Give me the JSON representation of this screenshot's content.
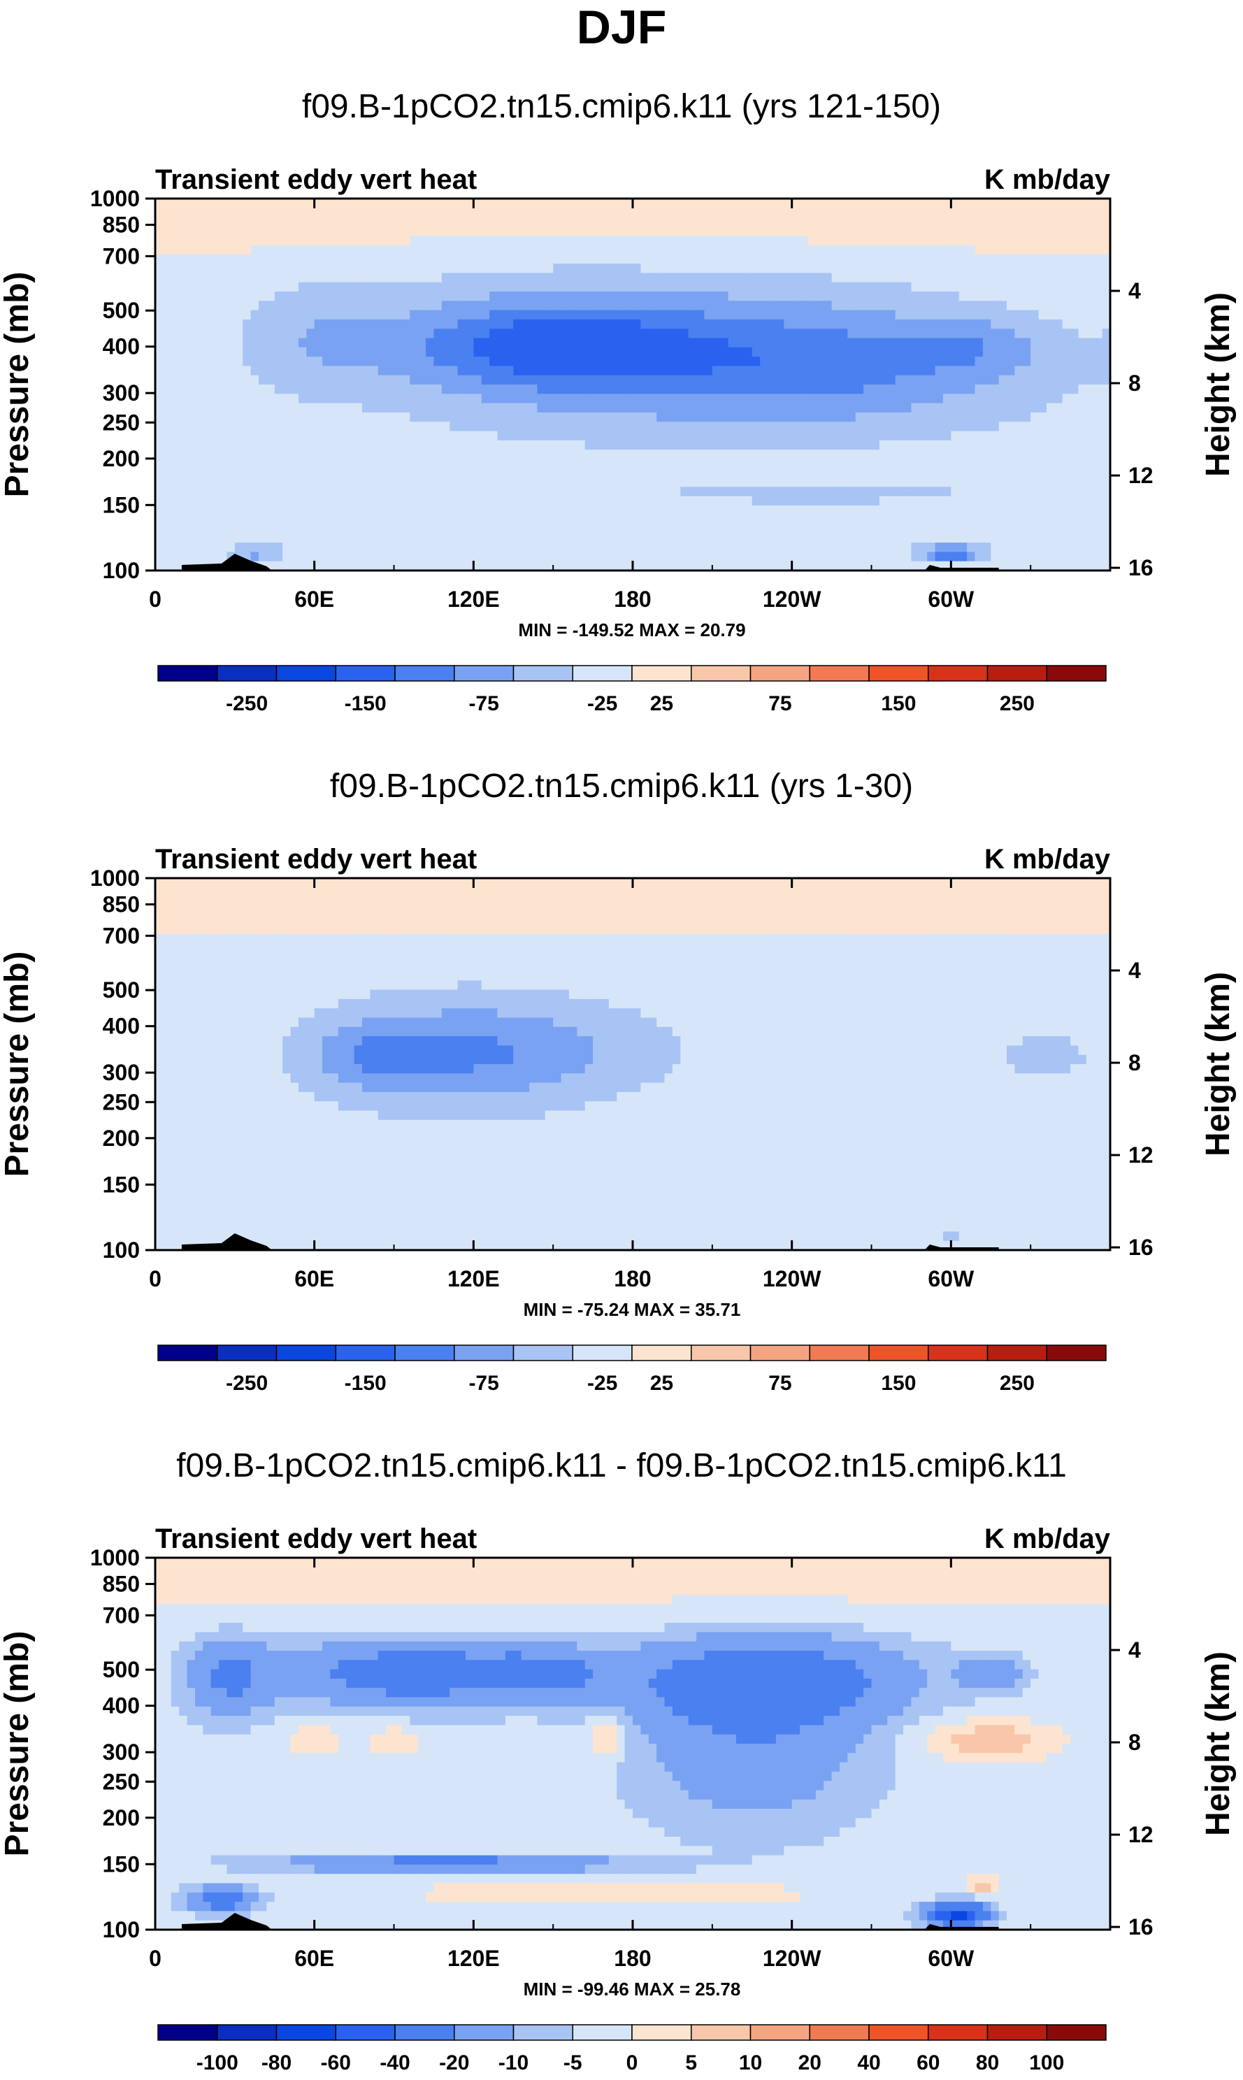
{
  "figure_title": "DJF",
  "chart_data": [
    {
      "type": "heatmap",
      "title": "f09.B-1pCO2.tn15.cmip6.k11 (yrs 121-150)",
      "subtitle_left": "Transient eddy vert heat",
      "subtitle_right": "K mb/day",
      "ylabel_left": "Pressure (mb)",
      "ylabel_right": "Height (km)",
      "x_ticks": [
        "0",
        "60E",
        "120E",
        "180",
        "120W",
        "60W"
      ],
      "y_ticks_left": [
        "100",
        "150",
        "200",
        "250",
        "300",
        "400",
        "500",
        "700",
        "850",
        "1000"
      ],
      "y_ticks_right": [
        "16",
        "12",
        "8",
        "4"
      ],
      "minmax": "MIN = -149.52  MAX =  20.79",
      "colorbar_labels": [
        "-250",
        "-150",
        "-75",
        "-25",
        "25",
        "75",
        "150",
        "250"
      ],
      "colorbar_colors": [
        "#00008a",
        "#0a2fc0",
        "#0a46e0",
        "#2a62ef",
        "#4a80f0",
        "#7aa2f2",
        "#a8c4f4",
        "#d6e6f8",
        "#fde4d0",
        "#f8c7aa",
        "#f5a482",
        "#f27a52",
        "#ee5428",
        "#d8331a",
        "#b81e10",
        "#8a0a0a"
      ],
      "colorbar_levels": [
        -300,
        -250,
        -200,
        -150,
        -100,
        -75,
        -50,
        -25,
        0,
        25,
        50,
        75,
        100,
        150,
        200,
        250,
        300
      ],
      "blobs": [
        {
          "lon": 60,
          "p": 240,
          "rx": 28,
          "ry": 80,
          "v": -30
        },
        {
          "lon": 145,
          "p": 250,
          "rx": 70,
          "ry": 120,
          "v": -40
        },
        {
          "lon": 150,
          "p": 250,
          "rx": 55,
          "ry": 60,
          "v": -60
        },
        {
          "lon": 215,
          "p": 250,
          "rx": 80,
          "ry": 110,
          "v": -35
        },
        {
          "lon": 255,
          "p": 260,
          "rx": 50,
          "ry": 90,
          "v": -30
        },
        {
          "lon": 255,
          "p": 330,
          "rx": 95,
          "ry": 110,
          "v": -28
        },
        {
          "lon": 310,
          "p": 250,
          "rx": 30,
          "ry": 50,
          "v": -40
        },
        {
          "lon": 300,
          "p": 900,
          "rx": 12,
          "ry": 50,
          "v": -90
        },
        {
          "lon": 38,
          "p": 900,
          "rx": 10,
          "ry": 60,
          "v": -45
        },
        {
          "lon": 380,
          "p": 250,
          "rx": 20,
          "ry": 60,
          "v": -30
        },
        {
          "lon": 250,
          "p": 620,
          "rx": 60,
          "ry": 40,
          "v": -28
        }
      ],
      "base_value": -10,
      "top_value": 15
    },
    {
      "type": "heatmap",
      "title": "f09.B-1pCO2.tn15.cmip6.k11 (yrs 1-30)",
      "subtitle_left": "Transient eddy vert heat",
      "subtitle_right": "K mb/day",
      "ylabel_left": "Pressure (mb)",
      "ylabel_right": "Height (km)",
      "x_ticks": [
        "0",
        "60E",
        "120E",
        "180",
        "120W",
        "60W"
      ],
      "y_ticks_left": [
        "100",
        "150",
        "200",
        "250",
        "300",
        "400",
        "500",
        "700",
        "850",
        "1000"
      ],
      "y_ticks_right": [
        "16",
        "12",
        "8",
        "4"
      ],
      "minmax": "MIN = -75.24  MAX =  35.71",
      "colorbar_labels": [
        "-250",
        "-150",
        "-75",
        "-25",
        "25",
        "75",
        "150",
        "250"
      ],
      "colorbar_colors": [
        "#00008a",
        "#0a2fc0",
        "#0a46e0",
        "#2a62ef",
        "#4a80f0",
        "#7aa2f2",
        "#a8c4f4",
        "#d6e6f8",
        "#fde4d0",
        "#f8c7aa",
        "#f5a482",
        "#f27a52",
        "#ee5428",
        "#d8331a",
        "#b81e10",
        "#8a0a0a"
      ],
      "colorbar_levels": [
        -300,
        -250,
        -200,
        -150,
        -100,
        -75,
        -50,
        -25,
        0,
        25,
        50,
        75,
        100,
        150,
        200,
        250,
        300
      ],
      "blobs": [
        {
          "lon": 80,
          "p": 300,
          "rx": 22,
          "ry": 60,
          "v": -35
        },
        {
          "lon": 110,
          "p": 300,
          "rx": 50,
          "ry": 110,
          "v": -40
        },
        {
          "lon": 140,
          "p": 290,
          "rx": 60,
          "ry": 90,
          "v": -35
        },
        {
          "lon": 335,
          "p": 300,
          "rx": 18,
          "ry": 40,
          "v": -30
        },
        {
          "lon": 300,
          "p": 900,
          "rx": 6,
          "ry": 30,
          "v": -30
        }
      ],
      "base_value": -10,
      "top_value": 15
    },
    {
      "type": "heatmap",
      "title": "f09.B-1pCO2.tn15.cmip6.k11 - f09.B-1pCO2.tn15.cmip6.k11",
      "subtitle_left": "Transient eddy vert heat",
      "subtitle_right": "K mb/day",
      "ylabel_left": "Pressure (mb)",
      "ylabel_right": "Height (km)",
      "x_ticks": [
        "0",
        "60E",
        "120E",
        "180",
        "120W",
        "60W"
      ],
      "y_ticks_left": [
        "100",
        "150",
        "200",
        "250",
        "300",
        "400",
        "500",
        "700",
        "850",
        "1000"
      ],
      "y_ticks_right": [
        "16",
        "12",
        "8",
        "4"
      ],
      "minmax": "MIN = -99.46  MAX =  25.78",
      "colorbar_labels": [
        "-100",
        "-80",
        "-60",
        "-40",
        "-20",
        "-10",
        "-5",
        "0",
        "5",
        "10",
        "20",
        "40",
        "60",
        "80",
        "100"
      ],
      "colorbar_colors": [
        "#00008a",
        "#0a2fc0",
        "#0a46e0",
        "#2a62ef",
        "#4a80f0",
        "#7aa2f2",
        "#a8c4f4",
        "#d6e6f8",
        "#fde4d0",
        "#f8c7aa",
        "#f5a482",
        "#f27a52",
        "#ee5428",
        "#d8331a",
        "#b81e10",
        "#8a0a0a"
      ],
      "colorbar_levels": [
        -120,
        -100,
        -80,
        -60,
        -40,
        -20,
        -10,
        -5,
        0,
        5,
        10,
        20,
        40,
        60,
        80,
        100,
        120
      ],
      "blobs": [
        {
          "lon": 28,
          "p": 210,
          "rx": 15,
          "ry": 50,
          "v": -18
        },
        {
          "lon": 95,
          "p": 205,
          "rx": 45,
          "ry": 40,
          "v": -25
        },
        {
          "lon": 145,
          "p": 205,
          "rx": 25,
          "ry": 30,
          "v": -18
        },
        {
          "lon": 230,
          "p": 215,
          "rx": 50,
          "ry": 55,
          "v": -28
        },
        {
          "lon": 225,
          "p": 330,
          "rx": 40,
          "ry": 150,
          "v": -14
        },
        {
          "lon": 315,
          "p": 205,
          "rx": 12,
          "ry": 20,
          "v": -14
        },
        {
          "lon": 60,
          "p": 310,
          "rx": 12,
          "ry": 40,
          "v": 6
        },
        {
          "lon": 90,
          "p": 310,
          "rx": 10,
          "ry": 30,
          "v": 7
        },
        {
          "lon": 170,
          "p": 300,
          "rx": 7,
          "ry": 40,
          "v": 11
        },
        {
          "lon": 315,
          "p": 310,
          "rx": 25,
          "ry": 40,
          "v": 12
        },
        {
          "lon": 110,
          "p": 665,
          "rx": 60,
          "ry": 30,
          "v": -25
        },
        {
          "lon": 150,
          "p": 795,
          "rx": 70,
          "ry": 35,
          "v": 7
        },
        {
          "lon": 220,
          "p": 795,
          "rx": 50,
          "ry": 30,
          "v": 5
        },
        {
          "lon": 302,
          "p": 910,
          "rx": 10,
          "ry": 60,
          "v": -65
        },
        {
          "lon": 25,
          "p": 830,
          "rx": 12,
          "ry": 60,
          "v": -28
        },
        {
          "lon": 312,
          "p": 760,
          "rx": 6,
          "ry": 40,
          "v": 11
        }
      ],
      "base_value": -3,
      "top_value": 3
    }
  ]
}
